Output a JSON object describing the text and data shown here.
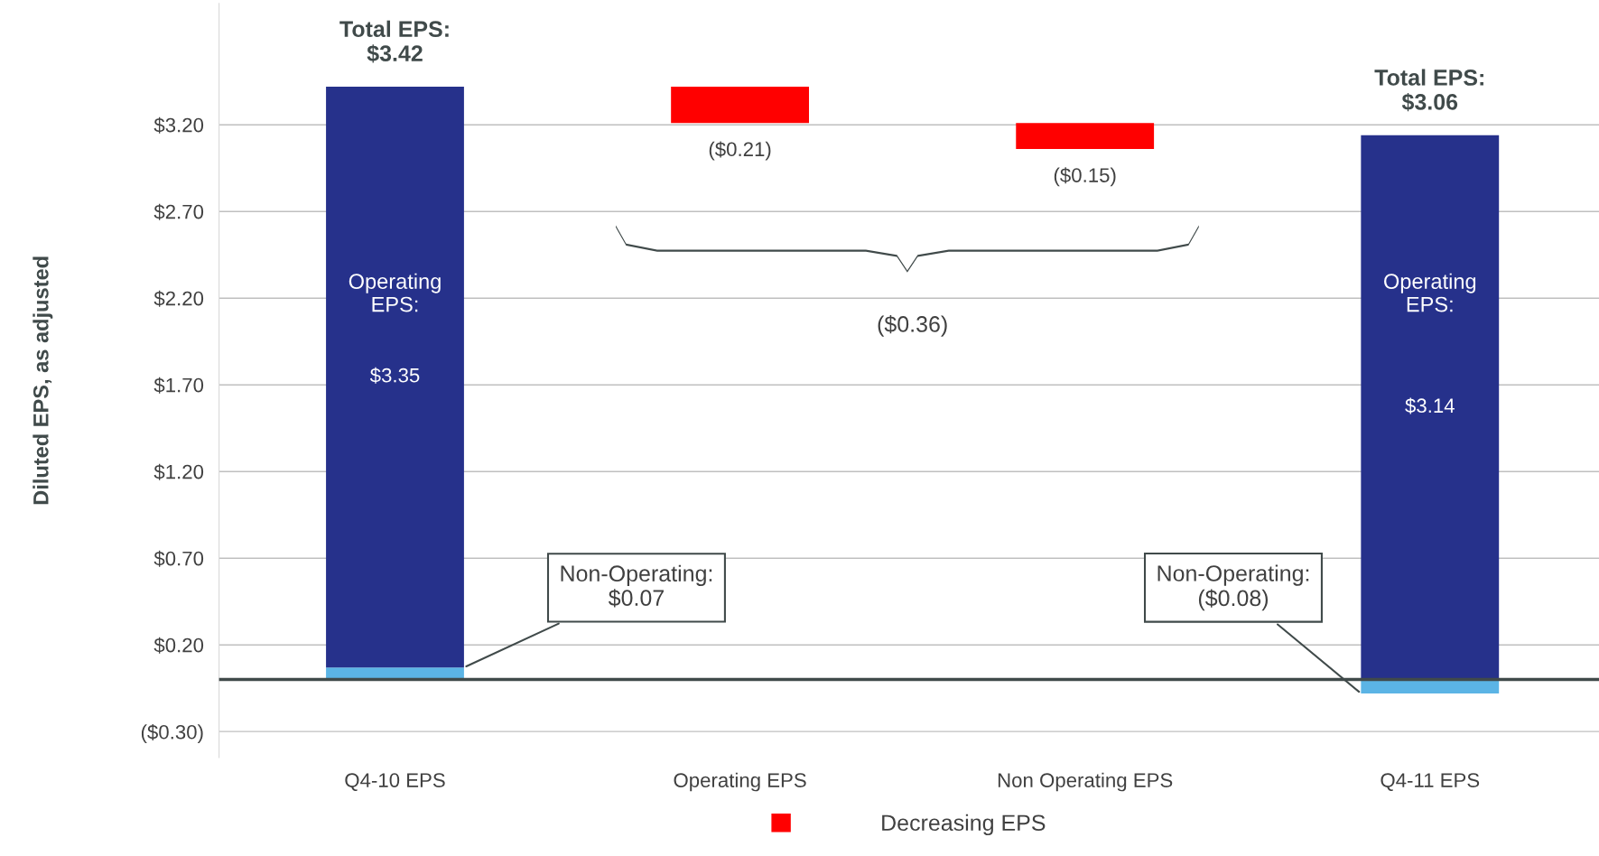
{
  "chart_data": {
    "type": "bar",
    "stacked": true,
    "ylabel": "Diluted EPS, as adjusted",
    "categories": [
      "Q4-10 EPS",
      "Operating EPS",
      "Non Operating EPS",
      "Q4-11 EPS"
    ],
    "series": [
      {
        "color": "#5bb4e5",
        "values": [
          0.07,
          null,
          null,
          -0.08
        ],
        "base": [
          0,
          null,
          null,
          0
        ],
        "value_labels": [
          "Non-Operating:\n$0.07",
          null,
          null,
          "Non-Operating:\n($0.08)"
        ]
      },
      {
        "color": "#26318b",
        "values": [
          3.35,
          null,
          null,
          3.14
        ],
        "base": [
          0.07,
          null,
          null,
          0
        ],
        "value_labels": [
          "$3.35",
          null,
          null,
          "$3.14"
        ]
      },
      {
        "name": "Decreasing EPS",
        "color": "#ff0000",
        "values": [
          null,
          -0.21,
          -0.15,
          null
        ],
        "base": [
          null,
          3.42,
          3.21,
          null
        ],
        "value_labels": [
          null,
          "($0.21)",
          "($0.15)",
          null
        ]
      }
    ],
    "totals": [
      "Total EPS:\n$3.42",
      null,
      null,
      "Total EPS:\n$3.06"
    ],
    "annotations": [
      "Operating\nEPS:",
      "Operating\nEPS:",
      "($0.36)"
    ],
    "ylim": [
      -0.45,
      3.9
    ],
    "yticks": [
      {
        "value": -0.3,
        "label": "($0.30)"
      },
      {
        "value": 0.2,
        "label": "$0.20"
      },
      {
        "value": 0.7,
        "label": "$0.70"
      },
      {
        "value": 1.2,
        "label": "$1.20"
      },
      {
        "value": 1.7,
        "label": "$1.70"
      },
      {
        "value": 2.2,
        "label": "$2.20"
      },
      {
        "value": 2.7,
        "label": "$2.70"
      },
      {
        "value": 3.2,
        "label": "$3.20"
      }
    ],
    "ref_lines": [
      {
        "axis": "y",
        "value": 0,
        "color": "#404a4a"
      }
    ],
    "grid": "y",
    "legend": "bottom"
  }
}
